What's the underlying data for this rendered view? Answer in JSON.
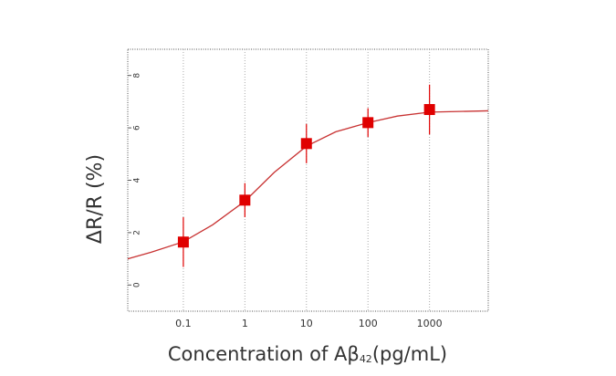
{
  "chart_data": {
    "type": "scatter",
    "xlabel": {
      "text": "Concentration of Aβ",
      "sub": "42",
      "after": "(pg/mL)"
    },
    "ylabel": "ΔR/R (%)",
    "xscale": "log",
    "xlim": [
      0.0125,
      9000
    ],
    "ylim": [
      -1,
      9
    ],
    "xticks": [
      0.1,
      1,
      10,
      100,
      1000
    ],
    "yticks": [
      0,
      2,
      4,
      6,
      8
    ],
    "grid": true,
    "series": [
      {
        "x": [
          0.1,
          1,
          10,
          100,
          1000
        ],
        "values": [
          1.64,
          3.24,
          5.4,
          6.2,
          6.7
        ],
        "errors": [
          0.95,
          0.65,
          0.75,
          0.55,
          0.95
        ],
        "color": "#e00000"
      }
    ],
    "fit": {
      "x": [
        0.0125,
        0.03,
        0.1,
        0.3,
        1,
        3,
        10,
        30,
        100,
        300,
        1000,
        9000
      ],
      "values": [
        1.0,
        1.25,
        1.65,
        2.3,
        3.2,
        4.3,
        5.3,
        5.85,
        6.2,
        6.45,
        6.6,
        6.65
      ],
      "color": "#c83232"
    }
  }
}
